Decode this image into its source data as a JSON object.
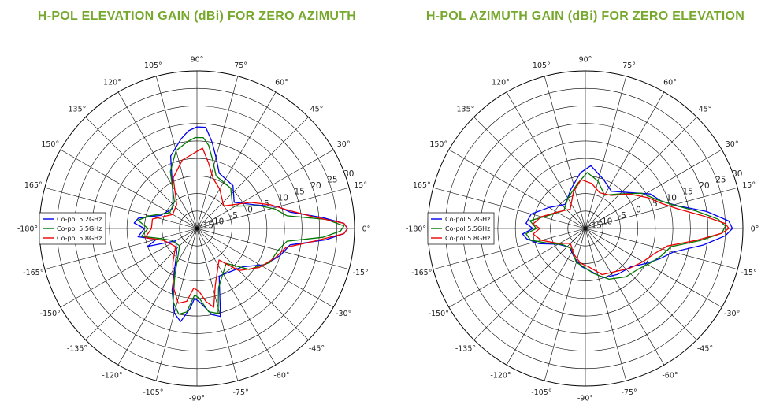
{
  "chart_data": [
    {
      "type": "polar-line",
      "title": "H-POL ELEVATION GAIN (dBi) FOR ZERO AZIMUTH",
      "angular_ticks": [
        "0°",
        "15°",
        "30°",
        "45°",
        "60°",
        "75°",
        "90°",
        "105°",
        "120°",
        "135°",
        "150°",
        "165°",
        "-180°",
        "-165°",
        "-150°",
        "-135°",
        "-120°",
        "-105°",
        "-90°",
        "-75°",
        "-60°",
        "-45°",
        "-30°",
        "-15°"
      ],
      "radial_ticks": [
        "-15",
        "-10",
        "-5",
        "0",
        "5",
        "10",
        "15",
        "20",
        "25",
        "30"
      ],
      "radial_range": [
        -15,
        30
      ],
      "grid": true,
      "legend_position": "left",
      "series": [
        {
          "name": "Co-pol 5.2GHz",
          "color": "#0000ee",
          "points": [
            [
              -180,
              0
            ],
            [
              -172,
              2
            ],
            [
              -165,
              -3
            ],
            [
              -160,
              0
            ],
            [
              -150,
              -8
            ],
            [
              -130,
              -6
            ],
            [
              -112,
              4
            ],
            [
              -105,
              10
            ],
            [
              -100,
              12
            ],
            [
              -95,
              8
            ],
            [
              -92,
              5
            ],
            [
              -88,
              6
            ],
            [
              -80,
              10
            ],
            [
              -75,
              11
            ],
            [
              -65,
              0
            ],
            [
              -40,
              2
            ],
            [
              -28,
              7
            ],
            [
              -18,
              10
            ],
            [
              -10,
              12
            ],
            [
              -5,
              22
            ],
            [
              -2,
              27
            ],
            [
              0,
              28
            ],
            [
              2,
              27
            ],
            [
              5,
              21
            ],
            [
              10,
              12
            ],
            [
              15,
              9
            ],
            [
              22,
              3
            ],
            [
              35,
              -2
            ],
            [
              50,
              1
            ],
            [
              68,
              2
            ],
            [
              75,
              6
            ],
            [
              80,
              10
            ],
            [
              85,
              14
            ],
            [
              90,
              14
            ],
            [
              95,
              13
            ],
            [
              100,
              11
            ],
            [
              110,
              7
            ],
            [
              125,
              -3
            ],
            [
              140,
              -6
            ],
            [
              160,
              -4
            ],
            [
              170,
              2
            ],
            [
              175,
              3
            ],
            [
              180,
              0
            ]
          ]
        },
        {
          "name": "Co-pol 5.5GHz",
          "color": "#007700",
          "points": [
            [
              -180,
              -1
            ],
            [
              -172,
              1
            ],
            [
              -165,
              -4
            ],
            [
              -155,
              -7
            ],
            [
              -135,
              -8
            ],
            [
              -115,
              0
            ],
            [
              -108,
              7
            ],
            [
              -102,
              10
            ],
            [
              -97,
              9
            ],
            [
              -92,
              4
            ],
            [
              -88,
              5
            ],
            [
              -82,
              9
            ],
            [
              -76,
              10
            ],
            [
              -70,
              3
            ],
            [
              -50,
              -2
            ],
            [
              -38,
              4
            ],
            [
              -25,
              8
            ],
            [
              -15,
              9
            ],
            [
              -8,
              11
            ],
            [
              -4,
              21
            ],
            [
              -1,
              26
            ],
            [
              1,
              27
            ],
            [
              4,
              22
            ],
            [
              8,
              11
            ],
            [
              14,
              8
            ],
            [
              20,
              4
            ],
            [
              32,
              -3
            ],
            [
              50,
              0
            ],
            [
              70,
              1
            ],
            [
              77,
              5
            ],
            [
              82,
              9
            ],
            [
              86,
              11
            ],
            [
              91,
              11
            ],
            [
              96,
              10
            ],
            [
              105,
              8
            ],
            [
              115,
              3
            ],
            [
              130,
              -5
            ],
            [
              150,
              -6
            ],
            [
              165,
              -1
            ],
            [
              172,
              2
            ],
            [
              180,
              -1
            ]
          ]
        },
        {
          "name": "Co-pol 5.8GHz",
          "color": "#ee0000",
          "points": [
            [
              -180,
              -2
            ],
            [
              -170,
              0
            ],
            [
              -160,
              -5
            ],
            [
              -140,
              -7
            ],
            [
              -125,
              -3
            ],
            [
              -112,
              3
            ],
            [
              -104,
              7
            ],
            [
              -98,
              6
            ],
            [
              -93,
              2
            ],
            [
              -88,
              3
            ],
            [
              -83,
              6
            ],
            [
              -78,
              8
            ],
            [
              -72,
              2
            ],
            [
              -55,
              -4
            ],
            [
              -45,
              2
            ],
            [
              -32,
              6
            ],
            [
              -20,
              9
            ],
            [
              -12,
              11
            ],
            [
              -6,
              19
            ],
            [
              -2,
              27
            ],
            [
              0,
              28
            ],
            [
              2,
              27
            ],
            [
              6,
              18
            ],
            [
              12,
              11
            ],
            [
              18,
              7
            ],
            [
              26,
              2
            ],
            [
              40,
              -5
            ],
            [
              60,
              -2
            ],
            [
              72,
              0
            ],
            [
              80,
              4
            ],
            [
              86,
              8
            ],
            [
              90,
              7
            ],
            [
              95,
              6
            ],
            [
              102,
              5
            ],
            [
              115,
              1
            ],
            [
              130,
              -6
            ],
            [
              150,
              -7
            ],
            [
              168,
              -2
            ],
            [
              180,
              -2
            ]
          ]
        }
      ]
    },
    {
      "type": "polar-line",
      "title": "H-POL AZIMUTH GAIN (dBi) FOR ZERO ELEVATION",
      "angular_ticks": [
        "0°",
        "15°",
        "30°",
        "45°",
        "60°",
        "75°",
        "90°",
        "105°",
        "120°",
        "135°",
        "150°",
        "165°",
        "-180°",
        "-165°",
        "-150°",
        "-135°",
        "-120°",
        "-105°",
        "-90°",
        "-75°",
        "-60°",
        "-45°",
        "-30°",
        "-15°"
      ],
      "radial_ticks": [
        "-15",
        "-10",
        "-5",
        "0",
        "5",
        "10",
        "15",
        "20",
        "25",
        "30"
      ],
      "radial_range": [
        -15,
        30
      ],
      "grid": true,
      "legend_position": "left",
      "series": [
        {
          "name": "Co-pol 5.2GHz",
          "color": "#0000ee",
          "points": [
            [
              -180,
              0
            ],
            [
              -175,
              3
            ],
            [
              -170,
              2
            ],
            [
              -162,
              -1
            ],
            [
              -150,
              -6
            ],
            [
              -130,
              -8
            ],
            [
              -110,
              -6
            ],
            [
              -95,
              -4
            ],
            [
              -85,
              -3
            ],
            [
              -70,
              0
            ],
            [
              -55,
              1
            ],
            [
              -40,
              2
            ],
            [
              -30,
              5
            ],
            [
              -22,
              8
            ],
            [
              -15,
              11
            ],
            [
              -8,
              19
            ],
            [
              -3,
              25
            ],
            [
              0,
              27
            ],
            [
              3,
              26
            ],
            [
              8,
              20
            ],
            [
              14,
              12
            ],
            [
              20,
              8
            ],
            [
              28,
              6
            ],
            [
              40,
              1
            ],
            [
              55,
              -2
            ],
            [
              70,
              0
            ],
            [
              85,
              3
            ],
            [
              95,
              1
            ],
            [
              110,
              -3
            ],
            [
              130,
              -6
            ],
            [
              150,
              -3
            ],
            [
              165,
              1
            ],
            [
              175,
              2
            ],
            [
              180,
              0
            ]
          ]
        },
        {
          "name": "Co-pol 5.5GHz",
          "color": "#007700",
          "points": [
            [
              -180,
              -1
            ],
            [
              -175,
              2
            ],
            [
              -168,
              1
            ],
            [
              -160,
              -3
            ],
            [
              -145,
              -7
            ],
            [
              -125,
              -8
            ],
            [
              -105,
              -5
            ],
            [
              -92,
              -4
            ],
            [
              -80,
              -2
            ],
            [
              -65,
              1
            ],
            [
              -50,
              3
            ],
            [
              -38,
              4
            ],
            [
              -28,
              6
            ],
            [
              -20,
              8
            ],
            [
              -12,
              10
            ],
            [
              -6,
              18
            ],
            [
              -2,
              24
            ],
            [
              1,
              25
            ],
            [
              4,
              23
            ],
            [
              9,
              17
            ],
            [
              15,
              11
            ],
            [
              22,
              7
            ],
            [
              32,
              4
            ],
            [
              45,
              -1
            ],
            [
              60,
              -4
            ],
            [
              75,
              -1
            ],
            [
              88,
              1
            ],
            [
              100,
              -2
            ],
            [
              120,
              -5
            ],
            [
              140,
              -7
            ],
            [
              160,
              -4
            ],
            [
              172,
              1
            ],
            [
              180,
              -1
            ]
          ]
        },
        {
          "name": "Co-pol 5.8GHz",
          "color": "#ee0000",
          "points": [
            [
              -180,
              -2
            ],
            [
              -174,
              0
            ],
            [
              -165,
              -2
            ],
            [
              -152,
              -6
            ],
            [
              -135,
              -9
            ],
            [
              -115,
              -7
            ],
            [
              -98,
              -5
            ],
            [
              -85,
              -4
            ],
            [
              -70,
              -1
            ],
            [
              -55,
              0
            ],
            [
              -42,
              2
            ],
            [
              -30,
              4
            ],
            [
              -20,
              6
            ],
            [
              -12,
              9
            ],
            [
              -6,
              17
            ],
            [
              -2,
              24
            ],
            [
              0,
              26
            ],
            [
              2,
              25
            ],
            [
              6,
              19
            ],
            [
              12,
              12
            ],
            [
              18,
              8
            ],
            [
              26,
              5
            ],
            [
              38,
              1
            ],
            [
              52,
              -3
            ],
            [
              68,
              -4
            ],
            [
              82,
              -2
            ],
            [
              95,
              -1
            ],
            [
              108,
              -4
            ],
            [
              128,
              -8
            ],
            [
              148,
              -6
            ],
            [
              165,
              -2
            ],
            [
              175,
              0
            ],
            [
              180,
              -2
            ]
          ]
        }
      ]
    }
  ]
}
